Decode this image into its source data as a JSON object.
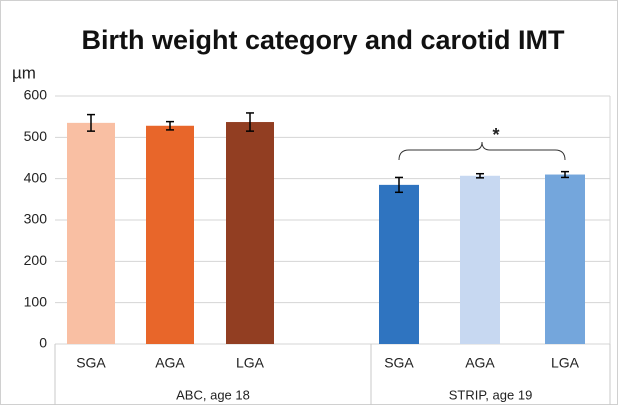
{
  "chart_data": {
    "type": "bar",
    "title": "Birth weight category and carotid IMT",
    "y_label": "µm",
    "ylim": [
      0,
      600
    ],
    "yticks": [
      0,
      100,
      200,
      300,
      400,
      500,
      600
    ],
    "grid": true,
    "groups": [
      {
        "name": "ABC, age 18",
        "categories": [
          "SGA",
          "AGA",
          "LGA"
        ],
        "values": [
          535,
          528,
          537
        ],
        "errors": [
          20,
          10,
          22
        ],
        "colors": [
          "#f9bfa3",
          "#e8662a",
          "#923e22"
        ]
      },
      {
        "name": "STRIP, age 19",
        "categories": [
          "SGA",
          "AGA",
          "LGA"
        ],
        "values": [
          385,
          407,
          410
        ],
        "errors": [
          18,
          5,
          7
        ],
        "colors": [
          "#2f74c0",
          "#c7d8f1",
          "#74a6dc"
        ]
      }
    ],
    "annotation": {
      "text": "*",
      "color": "#e02020"
    }
  }
}
